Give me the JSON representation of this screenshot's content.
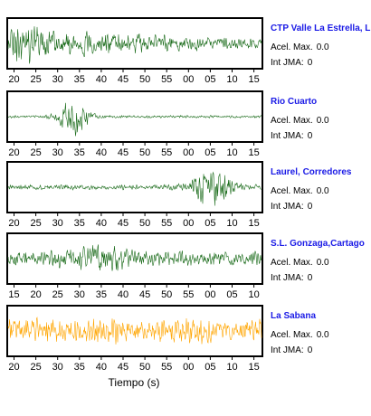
{
  "chart_data": {
    "type": "line",
    "xlabel": "Tiempo (s)",
    "acel_label": "Acel. Max.",
    "int_label": "Int JMA:",
    "panels": [
      {
        "station": "CTP Valle La Estrella, L",
        "acel_max": "0.0",
        "int_jma": "0",
        "color": "#1a6b1a",
        "ticks": [
          "20",
          "25",
          "30",
          "35",
          "40",
          "45",
          "50",
          "55",
          "00",
          "05",
          "10",
          "15"
        ],
        "tick_offset": 20,
        "amplitude": 1.0,
        "envelope": "decay",
        "burst_center": 26
      },
      {
        "station": "Rio Cuarto",
        "acel_max": "0.0",
        "int_jma": "0",
        "color": "#1a6b1a",
        "ticks": [
          "20",
          "25",
          "30",
          "35",
          "40",
          "45",
          "50",
          "55",
          "00",
          "05",
          "10",
          "15"
        ],
        "tick_offset": 20,
        "amplitude": 1.0,
        "envelope": "burst",
        "burst_center": 30
      },
      {
        "station": "Laurel, Corredores",
        "acel_max": "0.0",
        "int_jma": "0",
        "color": "#1a6b1a",
        "ticks": [
          "20",
          "25",
          "30",
          "35",
          "40",
          "45",
          "50",
          "55",
          "00",
          "05",
          "10",
          "15"
        ],
        "tick_offset": 20,
        "amplitude": 1.0,
        "envelope": "late-burst",
        "burst_center": 69
      },
      {
        "station": "S.L. Gonzaga,Cartago",
        "acel_max": "0.0",
        "int_jma": "0",
        "color": "#1a6b1a",
        "ticks": [
          "15",
          "20",
          "25",
          "30",
          "35",
          "40",
          "45",
          "50",
          "55",
          "00",
          "05",
          "10"
        ],
        "tick_offset": 15,
        "amplitude": 1.0,
        "envelope": "noise",
        "burst_center": 32
      },
      {
        "station": "La Sabana",
        "acel_max": "0.0",
        "int_jma": "0",
        "color": "#ffa500",
        "ticks": [
          "20",
          "25",
          "30",
          "35",
          "40",
          "45",
          "50",
          "55",
          "00",
          "05",
          "10",
          "15"
        ],
        "tick_offset": 20,
        "amplitude": 1.0,
        "envelope": "noise-strong",
        "burst_center": 48
      }
    ]
  }
}
